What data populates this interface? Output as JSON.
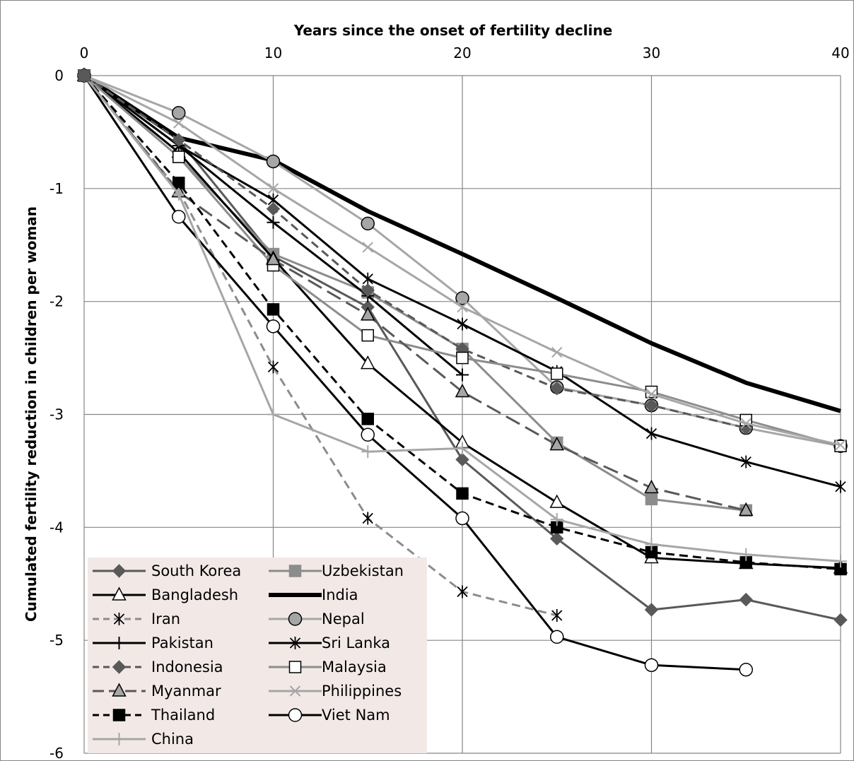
{
  "chart_data": {
    "type": "line",
    "xlabel": "Years since the onset of fertility decline",
    "ylabel": "Cumulated fertility reduction in children per woman",
    "xlim": [
      0,
      40
    ],
    "ylim": [
      -6,
      0
    ],
    "x_ticks": [
      "0",
      "10",
      "20",
      "30",
      "40"
    ],
    "y_ticks": [
      "0",
      "-1",
      "-2",
      "-3",
      "-4",
      "-5",
      "-6"
    ],
    "grid": true,
    "x_axis_position": "top",
    "legend_position": "bottom-left",
    "colors": {
      "dark_gray": "#595959",
      "black": "#000000",
      "gray": "#8c8c8c",
      "light_gray": "#a6a6a6",
      "grid": "#868686",
      "legend_bg": "#f2e9e6"
    },
    "series": [
      {
        "name": "South Korea",
        "color": "#595959",
        "dash": "solid",
        "width": 3,
        "marker": "diamond",
        "marker_fill": "#595959",
        "points": [
          [
            0,
            0
          ],
          [
            5,
            -0.57
          ],
          [
            10,
            -1.6
          ],
          [
            15,
            -2.05
          ],
          [
            20,
            -3.4
          ],
          [
            25,
            -4.1
          ],
          [
            30,
            -4.73
          ],
          [
            35,
            -4.64
          ],
          [
            40,
            -4.82
          ]
        ]
      },
      {
        "name": "Uzbekistan",
        "color": "#8c8c8c",
        "dash": "solid",
        "width": 3,
        "marker": "square",
        "marker_fill": "#8c8c8c",
        "points": [
          [
            0,
            0
          ],
          [
            5,
            -0.72
          ],
          [
            10,
            -1.58
          ],
          [
            15,
            -1.92
          ],
          [
            20,
            -2.42
          ],
          [
            25,
            -3.25
          ],
          [
            30,
            -3.75
          ],
          [
            35,
            -3.85
          ]
        ]
      },
      {
        "name": "Bangladesh",
        "color": "#000000",
        "dash": "solid",
        "width": 3,
        "marker": "triangle",
        "marker_fill": "#ffffff",
        "points": [
          [
            0,
            0
          ],
          [
            5,
            -0.68
          ],
          [
            10,
            -1.62
          ],
          [
            15,
            -2.55
          ],
          [
            20,
            -3.25
          ],
          [
            25,
            -3.78
          ],
          [
            30,
            -4.27
          ],
          [
            35,
            -4.32
          ],
          [
            40,
            -4.36
          ]
        ]
      },
      {
        "name": "India",
        "color": "#000000",
        "dash": "solid",
        "width": 6,
        "marker": "none",
        "marker_fill": "#000000",
        "points": [
          [
            0,
            0
          ],
          [
            5,
            -0.55
          ],
          [
            10,
            -0.75
          ],
          [
            15,
            -1.2
          ],
          [
            20,
            -1.58
          ],
          [
            25,
            -1.97
          ],
          [
            30,
            -2.37
          ],
          [
            35,
            -2.72
          ],
          [
            40,
            -2.97
          ]
        ]
      },
      {
        "name": "Iran",
        "color": "#8c8c8c",
        "dash": "dashed",
        "width": 3,
        "marker": "star",
        "marker_fill": "#000000",
        "points": [
          [
            0,
            0
          ],
          [
            5,
            -1.02
          ],
          [
            10,
            -2.58
          ],
          [
            15,
            -3.92
          ],
          [
            20,
            -4.57
          ],
          [
            25,
            -4.78
          ]
        ]
      },
      {
        "name": "Nepal",
        "color": "#a6a6a6",
        "dash": "solid",
        "width": 3,
        "marker": "circle",
        "marker_fill": "#a6a6a6",
        "points": [
          [
            0,
            0
          ],
          [
            5,
            -0.33
          ],
          [
            10,
            -0.76
          ],
          [
            15,
            -1.31
          ],
          [
            20,
            -1.97
          ],
          [
            25,
            -2.76
          ],
          [
            30,
            -2.92
          ],
          [
            35,
            -3.12
          ],
          [
            40,
            -3.28
          ]
        ]
      },
      {
        "name": "Pakistan",
        "color": "#000000",
        "dash": "solid",
        "width": 3,
        "marker": "plus",
        "marker_fill": "#000000",
        "points": [
          [
            0,
            0
          ],
          [
            5,
            -0.62
          ],
          [
            10,
            -1.3
          ],
          [
            15,
            -1.95
          ],
          [
            20,
            -2.65
          ]
        ]
      },
      {
        "name": "Sri Lanka",
        "color": "#000000",
        "dash": "solid",
        "width": 3,
        "marker": "star",
        "marker_fill": "#000000",
        "points": [
          [
            0,
            0
          ],
          [
            5,
            -0.62
          ],
          [
            10,
            -1.1
          ],
          [
            15,
            -1.8
          ],
          [
            20,
            -2.2
          ],
          [
            25,
            -2.62
          ],
          [
            30,
            -3.17
          ],
          [
            35,
            -3.42
          ],
          [
            40,
            -3.64
          ]
        ]
      },
      {
        "name": "Indonesia",
        "color": "#595959",
        "dash": "dashed",
        "width": 3,
        "marker": "diamond",
        "marker_fill": "#595959",
        "points": [
          [
            0,
            0
          ],
          [
            5,
            -0.57
          ],
          [
            10,
            -1.18
          ],
          [
            15,
            -1.9
          ],
          [
            20,
            -2.42
          ],
          [
            25,
            -2.77
          ],
          [
            30,
            -2.92
          ],
          [
            35,
            -3.12
          ]
        ]
      },
      {
        "name": "Malaysia",
        "color": "#8c8c8c",
        "dash": "solid",
        "width": 3,
        "marker": "square",
        "marker_fill": "#ffffff",
        "points": [
          [
            0,
            0
          ],
          [
            5,
            -0.72
          ],
          [
            10,
            -1.68
          ],
          [
            15,
            -2.3
          ],
          [
            20,
            -2.5
          ],
          [
            25,
            -2.64
          ],
          [
            30,
            -2.8
          ],
          [
            35,
            -3.05
          ],
          [
            40,
            -3.28
          ]
        ]
      },
      {
        "name": "Myanmar",
        "color": "#595959",
        "dash": "longdash",
        "width": 3,
        "marker": "triangle",
        "marker_fill": "#a6a6a6",
        "points": [
          [
            0,
            0
          ],
          [
            5,
            -1.03
          ],
          [
            10,
            -1.63
          ],
          [
            15,
            -2.12
          ],
          [
            20,
            -2.8
          ],
          [
            25,
            -3.27
          ],
          [
            30,
            -3.65
          ],
          [
            35,
            -3.85
          ]
        ]
      },
      {
        "name": "Philippines",
        "color": "#a6a6a6",
        "dash": "solid",
        "width": 3,
        "marker": "x",
        "marker_fill": "#a6a6a6",
        "points": [
          [
            0,
            0
          ],
          [
            5,
            -0.42
          ],
          [
            10,
            -1.0
          ],
          [
            15,
            -1.52
          ],
          [
            20,
            -2.05
          ],
          [
            25,
            -2.45
          ],
          [
            30,
            -2.82
          ],
          [
            35,
            -3.08
          ],
          [
            40,
            -3.27
          ]
        ]
      },
      {
        "name": "Thailand",
        "color": "#000000",
        "dash": "dashed",
        "width": 3,
        "marker": "square",
        "marker_fill": "#000000",
        "points": [
          [
            0,
            0
          ],
          [
            5,
            -0.95
          ],
          [
            10,
            -2.07
          ],
          [
            15,
            -3.04
          ],
          [
            20,
            -3.7
          ],
          [
            25,
            -4.0
          ],
          [
            30,
            -4.22
          ],
          [
            35,
            -4.31
          ],
          [
            40,
            -4.37
          ]
        ]
      },
      {
        "name": "Viet Nam",
        "color": "#000000",
        "dash": "solid",
        "width": 3,
        "marker": "circle",
        "marker_fill": "#ffffff",
        "points": [
          [
            0,
            0
          ],
          [
            5,
            -1.25
          ],
          [
            10,
            -2.22
          ],
          [
            15,
            -3.18
          ],
          [
            20,
            -3.92
          ],
          [
            25,
            -4.97
          ],
          [
            30,
            -5.22
          ],
          [
            35,
            -5.26
          ]
        ]
      },
      {
        "name": "China",
        "color": "#a6a6a6",
        "dash": "solid",
        "width": 3,
        "marker": "plus",
        "marker_fill": "#a6a6a6",
        "points": [
          [
            0,
            0
          ],
          [
            5,
            -1.05
          ],
          [
            10,
            -3.0
          ],
          [
            15,
            -3.33
          ],
          [
            20,
            -3.3
          ],
          [
            25,
            -3.93
          ],
          [
            30,
            -4.15
          ],
          [
            35,
            -4.24
          ],
          [
            40,
            -4.3
          ]
        ]
      }
    ]
  }
}
